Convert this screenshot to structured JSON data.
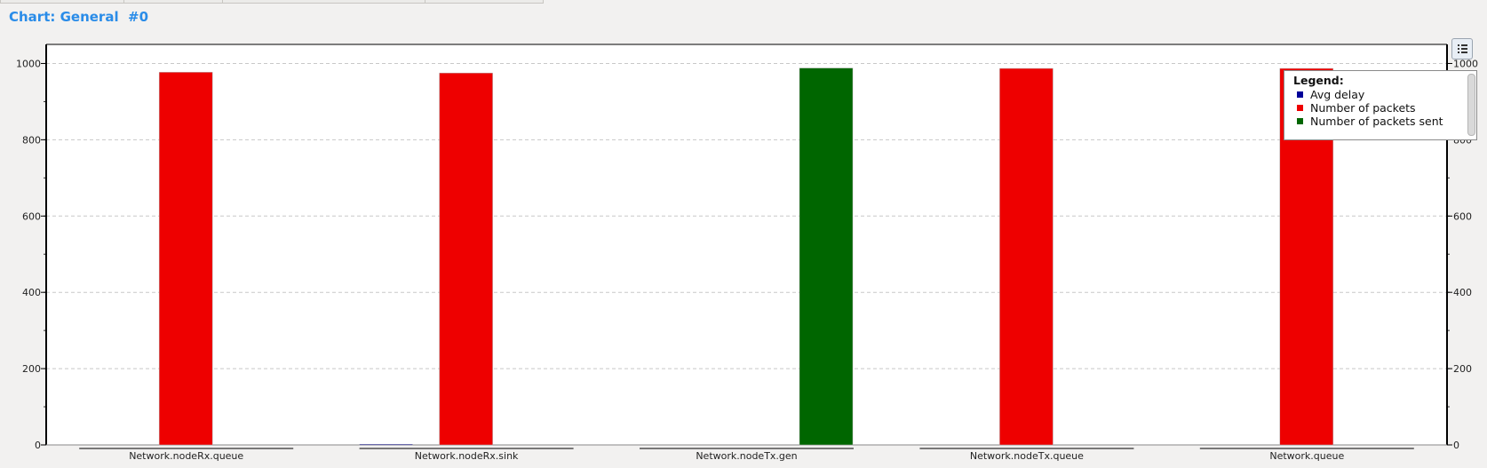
{
  "window": {
    "title": "Chart: General  #0"
  },
  "legend_panel": {
    "title": "Legend:",
    "toggle_icon": "legend-list-icon"
  },
  "colors": {
    "Avg delay": "#000099",
    "Number of packets": "#ee0000",
    "Number of packets sent": "#006600"
  },
  "chart_data": {
    "type": "bar",
    "title": "",
    "xlabel": "",
    "ylabel": "",
    "categories": [
      "Network.nodeRx.queue",
      "Network.nodeRx.sink",
      "Network.nodeTx.gen",
      "Network.nodeTx.queue",
      "Network.queue"
    ],
    "series": [
      {
        "name": "Avg delay",
        "values": [
          0,
          1.5,
          0,
          0,
          0
        ]
      },
      {
        "name": "Number of packets",
        "values": [
          977,
          975,
          0,
          987,
          987
        ]
      },
      {
        "name": "Number of packets sent",
        "values": [
          0,
          0,
          988,
          0,
          0
        ]
      }
    ],
    "bar_slots": [
      {
        "category": 0,
        "series": "Number of packets",
        "slot": 1
      },
      {
        "category": 1,
        "series": "Avg delay",
        "slot": 0
      },
      {
        "category": 1,
        "series": "Number of packets",
        "slot": 1
      },
      {
        "category": 2,
        "series": "Number of packets sent",
        "slot": 2
      },
      {
        "category": 3,
        "series": "Number of packets",
        "slot": 1
      },
      {
        "category": 4,
        "series": "Number of packets",
        "slot": 1
      }
    ],
    "ylim": [
      0,
      1050
    ],
    "yticks": [
      0,
      200,
      400,
      600,
      800,
      1000
    ],
    "y_axis_right": true,
    "grid": true,
    "legend_position": "top-right"
  }
}
